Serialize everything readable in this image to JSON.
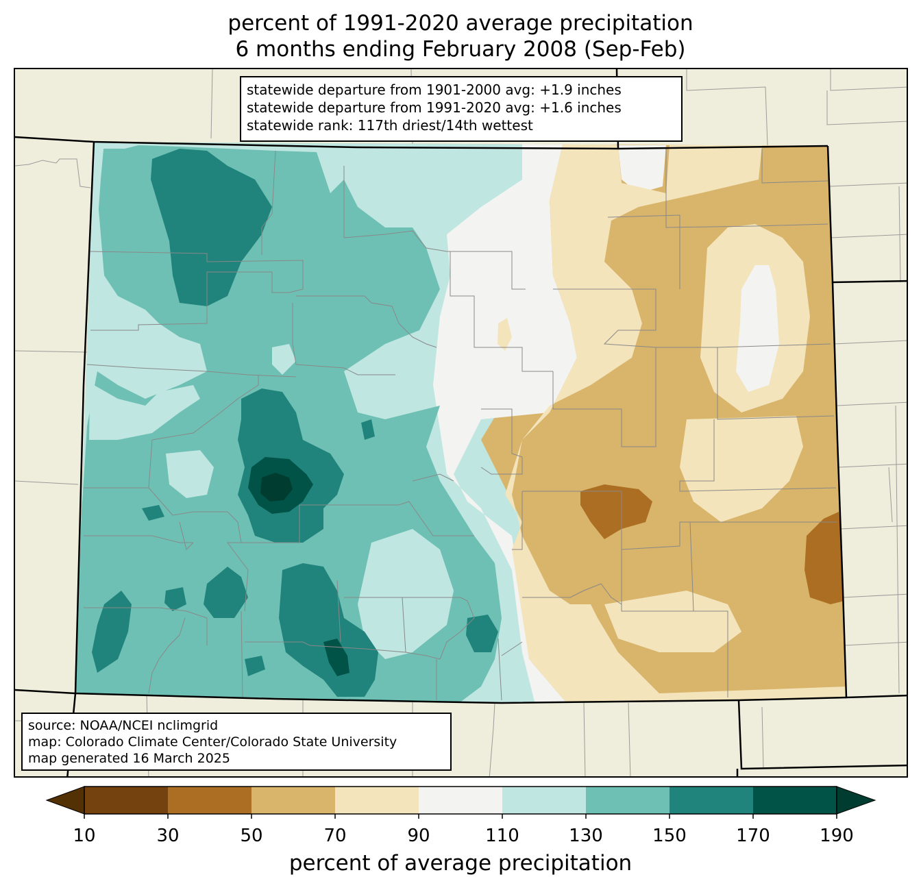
{
  "title": {
    "line1": "percent of 1991-2020 average precipitation",
    "line2": "6 months ending February 2008 (Sep-Feb)"
  },
  "stats": {
    "line1": "statewide departure from 1901-2000 avg: +1.9 inches",
    "line2": "statewide departure from 1991-2020 avg: +1.6 inches",
    "line3": "statewide rank: 117th driest/14th wettest"
  },
  "source": {
    "line1": "source: NOAA/NCEI nclimgrid",
    "line2": "map: Colorado Climate Center/Colorado State University",
    "line3": "map generated 16 March 2025"
  },
  "colorbar": {
    "label": "percent of average precipitation",
    "ticks": [
      "10",
      "30",
      "50",
      "70",
      "90",
      "110",
      "130",
      "150",
      "170",
      "190"
    ],
    "under_color": "#543005",
    "over_color": "#003c30",
    "bins": [
      "#74420e",
      "#ab6e22",
      "#d9b46b",
      "#f3e4bc",
      "#f3f4f1",
      "#bfe6e0",
      "#6fc0b4",
      "#21847c",
      "#005346"
    ]
  },
  "map": {
    "background_color": "#efeedc",
    "colors": {
      "c30_50": "#ab6e22",
      "c50_70": "#d9b46b",
      "c70_90": "#f3e4bc",
      "c90_110": "#f3f4f1",
      "c110_130": "#bfe6e0",
      "c130_150": "#6fc0b4",
      "c150_170": "#21847c",
      "c170_190": "#005346",
      "c190_plus": "#003c30"
    }
  }
}
